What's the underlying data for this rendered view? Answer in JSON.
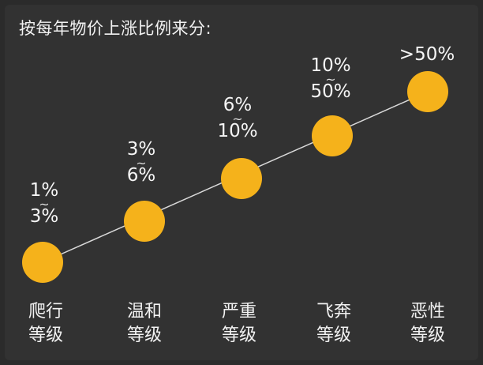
{
  "title": "按每年物价上涨比例来分:",
  "colors": {
    "background": "#323232",
    "dot": "#f5b21b",
    "line": "#d9d9d9",
    "text": "#f2f2f2"
  },
  "stages": [
    {
      "low": "1%",
      "high": "3%",
      "tilde": "~",
      "name_line1": "爬行",
      "name_line2": "等级"
    },
    {
      "low": "3%",
      "high": "6%",
      "tilde": "~",
      "name_line1": "温和",
      "name_line2": "等级"
    },
    {
      "low": "6%",
      "high": "10%",
      "tilde": "~",
      "name_line1": "严重",
      "name_line2": "等级"
    },
    {
      "low": "10%",
      "high": "50%",
      "tilde": "~",
      "name_line1": "飞奔",
      "name_line2": "等级"
    },
    {
      "single": ">50%",
      "name_line1": "恶性",
      "name_line2": "等级"
    }
  ]
}
